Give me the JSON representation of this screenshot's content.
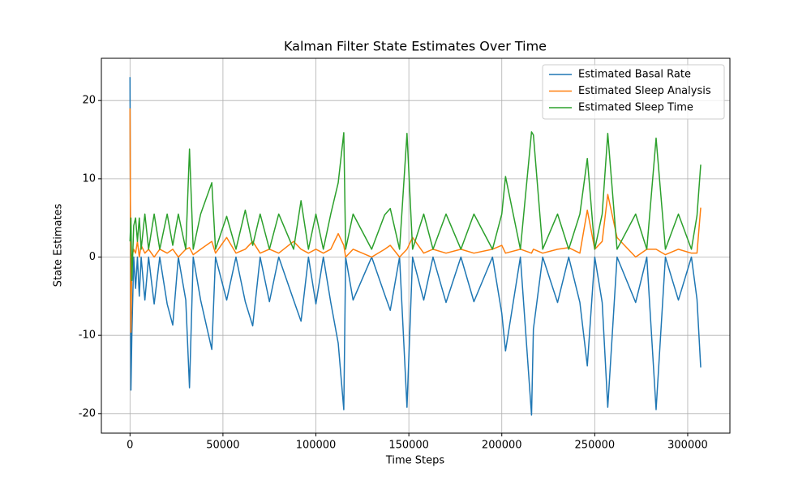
{
  "chart_data": {
    "type": "line",
    "title": "Kalman Filter State Estimates Over Time",
    "x_label": "Time Steps",
    "y_label": "State Estimates",
    "x": [
      0,
      500,
      1000,
      2000,
      3000,
      4000,
      5000,
      6000,
      8000,
      10000,
      13000,
      16000,
      20000,
      23000,
      26000,
      30000,
      32000,
      34000,
      38000,
      44000,
      46000,
      52000,
      57000,
      62000,
      66000,
      70000,
      75000,
      80000,
      88000,
      92000,
      96000,
      100000,
      104000,
      108000,
      112000,
      115000,
      116000,
      120000,
      130000,
      137000,
      140000,
      145000,
      149000,
      152000,
      158000,
      163000,
      170000,
      178000,
      185000,
      195000,
      200000,
      202000,
      210000,
      216000,
      217000,
      222000,
      230000,
      236000,
      242000,
      246000,
      250000,
      254000,
      257000,
      262000,
      272000,
      278000,
      283000,
      288000,
      295000,
      302000,
      305000,
      307000
    ],
    "series": [
      {
        "name": "Estimated Basal Rate",
        "color": "#1f77b4",
        "values": [
          23,
          -17,
          -10,
          0,
          -4,
          0,
          -5,
          0,
          -5.5,
          0,
          -6,
          0,
          -6,
          -8.7,
          0,
          -5.5,
          -16.7,
          0,
          -5.5,
          -11.8,
          0,
          -5.5,
          0,
          -5.7,
          -8.8,
          0,
          -5.7,
          0,
          -5.5,
          -8.2,
          0,
          -6,
          0,
          -5.8,
          -11,
          -19.5,
          0,
          -5.5,
          0,
          -4.8,
          -6.8,
          0,
          -19.2,
          0,
          -5.5,
          0,
          -5.8,
          0,
          -5.7,
          0,
          -7.2,
          -12,
          0,
          -20.2,
          -9.2,
          0,
          -5.8,
          0,
          -5.8,
          -13.9,
          0,
          -5.8,
          -19.2,
          0,
          -5.8,
          0,
          -19.5,
          0,
          -5.5,
          0,
          -5.4,
          -14.1
        ]
      },
      {
        "name": "Estimated Sleep Analysis",
        "color": "#ff7f0e",
        "values": [
          19,
          -9.6,
          0,
          1,
          0.5,
          2,
          0,
          1.5,
          0.5,
          1,
          0,
          1,
          0.5,
          1,
          0,
          1,
          1.2,
          0.3,
          1,
          2,
          0.5,
          2.5,
          0.5,
          1,
          2,
          0.5,
          1,
          0.5,
          2,
          1,
          0.5,
          1,
          0.5,
          1,
          3,
          1.5,
          0,
          1,
          0,
          1,
          1.5,
          0,
          1,
          2.5,
          0.5,
          1,
          0.5,
          1,
          0.5,
          1,
          1.5,
          0.5,
          1,
          0.5,
          1,
          0.5,
          1,
          1.2,
          0.5,
          6,
          1,
          2,
          8,
          2.5,
          0,
          1,
          1,
          0.3,
          1,
          0.5,
          0.5,
          6.3
        ]
      },
      {
        "name": "Estimated Sleep Time",
        "color": "#2ca02c",
        "values": [
          2,
          5,
          -3,
          4,
          5,
          2,
          5,
          1,
          5.5,
          1,
          5.5,
          1,
          5.5,
          1.5,
          5.5,
          1,
          13.8,
          1,
          5.5,
          9.5,
          1,
          5.2,
          1,
          6,
          1.5,
          5.5,
          1,
          5.5,
          1,
          7.2,
          1,
          5.5,
          1,
          5.5,
          9.5,
          15.9,
          1,
          5.5,
          1,
          5.4,
          6.2,
          1,
          15.8,
          1,
          5.5,
          1,
          5.5,
          1,
          5.5,
          1,
          5.5,
          10.3,
          1,
          16,
          15.6,
          1,
          5.5,
          1,
          5.5,
          12.6,
          1,
          5.5,
          15.8,
          1,
          5.5,
          1,
          15.2,
          1,
          5.5,
          1,
          5.3,
          11.8
        ]
      }
    ],
    "xlim": [
      -15400,
      322700
    ],
    "ylim": [
      -22.5,
      25.4
    ],
    "xticks": [
      0,
      50000,
      100000,
      150000,
      200000,
      250000,
      300000
    ],
    "yticks": [
      -20,
      -10,
      0,
      10,
      20
    ],
    "grid": true,
    "legend": "upper-right"
  }
}
